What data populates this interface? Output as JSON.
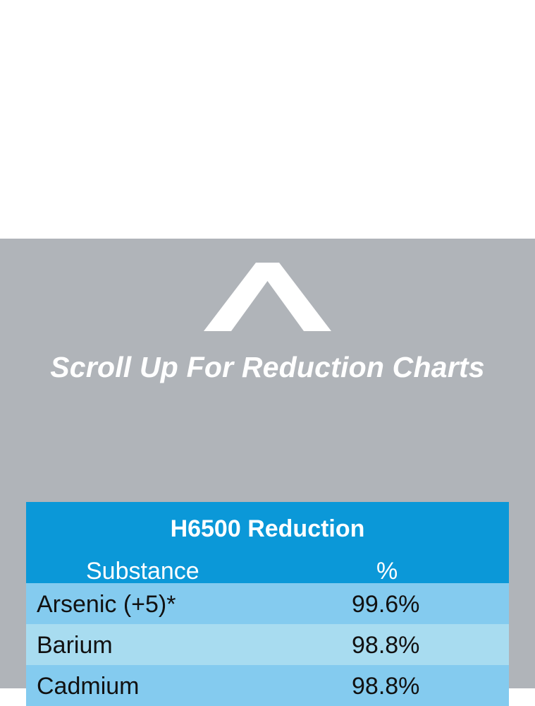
{
  "scroll_prompt": {
    "icon": "chevron-up-icon",
    "label": "Scroll Up For Reduction Charts"
  },
  "table": {
    "title": "H6500 Reduction",
    "columns": [
      "Substance",
      "%"
    ],
    "rows": [
      {
        "substance": "Arsenic (+5)*",
        "percent": "99.6%"
      },
      {
        "substance": "Barium",
        "percent": "98.8%"
      },
      {
        "substance": "Cadmium",
        "percent": "98.8%"
      }
    ]
  },
  "colors": {
    "panel_gray": "#b0b4b9",
    "header_blue": "#0b98d8",
    "row_light_blue": "#84cbef",
    "row_pale_blue": "#a8dcf0"
  }
}
